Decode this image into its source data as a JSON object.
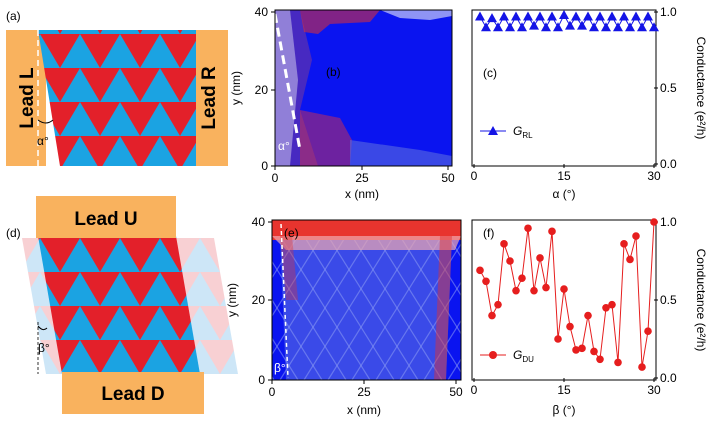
{
  "colors": {
    "lead": "#F9B25E",
    "tri_red": "#E3202A",
    "tri_blue": "#1BA3E2",
    "map_blue": "#0A14F0",
    "series_blue": "#1414E6",
    "series_red": "#E61E1E",
    "faint_red": "#F8D0D3",
    "faint_blue": "#CDE6F7"
  },
  "panel_labels": {
    "a": "(a)",
    "b": "(b)",
    "c": "(c)",
    "d": "(d)",
    "e": "(e)",
    "f": "(f)"
  },
  "schematic_top": {
    "lead_left": "Lead L",
    "lead_right": "Lead R",
    "angle": "α°"
  },
  "schematic_bottom": {
    "lead_top": "Lead U",
    "lead_bottom": "Lead D",
    "angle": "β°"
  },
  "map_b": {
    "xlabel": "x (nm)",
    "ylabel": "y (nm)",
    "xticks": [
      "0",
      "25",
      "50"
    ],
    "yticks": [
      "0",
      "20",
      "40"
    ],
    "angle": "α°"
  },
  "map_e": {
    "xlabel": "x (nm)",
    "ylabel": "y (nm)",
    "xticks": [
      "0",
      "25",
      "50"
    ],
    "yticks": [
      "0",
      "20",
      "40"
    ],
    "angle": "β°"
  },
  "chart_data": [
    {
      "panel": "c",
      "type": "line",
      "xlabel": "α (°)",
      "ylabel": "Conductance (e²/h)",
      "xlim": [
        0,
        30
      ],
      "ylim": [
        0.0,
        1.0
      ],
      "xticks": [
        "0",
        "15",
        "30"
      ],
      "yticks": [
        "0.0",
        "0.5",
        "1.0"
      ],
      "legend": {
        "main": "G",
        "sub": "RL",
        "placement": "bottom-left"
      },
      "series": [
        {
          "name": "G_RL",
          "x": [
            1.0,
            2.0,
            3.0,
            4.0,
            5.0,
            6.0,
            7.0,
            8.0,
            9.0,
            10.0,
            11.0,
            12.0,
            13.0,
            14.0,
            15.0,
            16.0,
            17.0,
            18.0,
            19.0,
            20.0,
            21.0,
            22.0,
            23.0,
            24.0,
            25.0,
            26.0,
            27.0,
            28.0,
            29.0,
            30.0
          ],
          "values": [
            0.97,
            0.9,
            0.96,
            0.9,
            0.97,
            0.9,
            0.97,
            0.9,
            0.97,
            0.91,
            0.97,
            0.9,
            0.97,
            0.9,
            0.98,
            0.91,
            0.97,
            0.91,
            0.97,
            0.9,
            0.97,
            0.9,
            0.97,
            0.9,
            0.97,
            0.9,
            0.97,
            0.9,
            0.97,
            0.9
          ]
        }
      ]
    },
    {
      "panel": "f",
      "type": "line",
      "xlabel": "β (°)",
      "ylabel": "Conductance (e²/h)",
      "xlim": [
        0,
        30
      ],
      "ylim": [
        0.0,
        1.0
      ],
      "xticks": [
        "0",
        "15",
        "30"
      ],
      "yticks": [
        "0.0",
        "0.5",
        "1.0"
      ],
      "legend": {
        "main": "G",
        "sub": "DU",
        "placement": "bottom-left"
      },
      "series": [
        {
          "name": "G_DU",
          "x": [
            1.0,
            2.0,
            3.0,
            4.0,
            5.0,
            6.0,
            7.0,
            8.0,
            9.0,
            10.0,
            11.0,
            12.0,
            13.0,
            14.0,
            15.0,
            16.0,
            17.0,
            18.0,
            19.0,
            20.0,
            21.0,
            22.0,
            23.0,
            24.0,
            25.0,
            26.0,
            27.0,
            28.0,
            29.0,
            30.0
          ],
          "values": [
            0.69,
            0.62,
            0.4,
            0.47,
            0.86,
            0.75,
            0.56,
            0.64,
            0.96,
            0.56,
            0.77,
            0.58,
            0.94,
            0.25,
            0.57,
            0.33,
            0.18,
            0.19,
            0.4,
            0.17,
            0.12,
            0.45,
            0.47,
            0.1,
            0.86,
            0.76,
            0.91,
            0.07,
            0.3,
            1.0
          ]
        }
      ]
    }
  ]
}
